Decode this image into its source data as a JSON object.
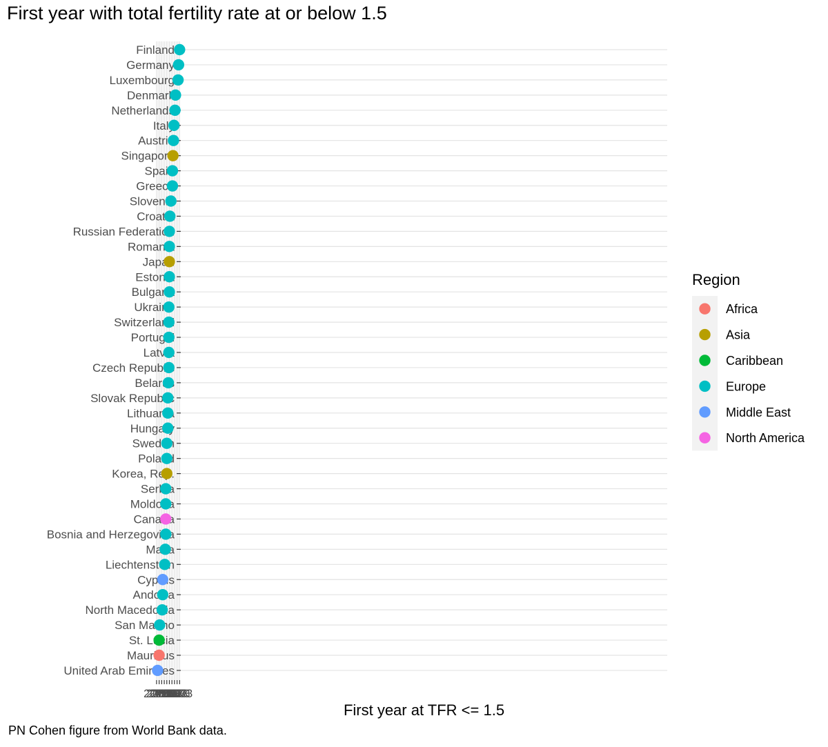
{
  "chart_data": {
    "type": "scatter",
    "title": "First year with total fertility rate at or below 1.5",
    "xlabel": "First year at TFR <= 1.5",
    "ylabel": "",
    "caption": "PN Cohen figure from World Bank data.",
    "xlim": [
      1970.7,
      1020.3
    ],
    "x_ticks": [
      1973,
      1978,
      1983,
      1988,
      1993,
      1998,
      2003,
      2008,
      2013,
      2018
    ],
    "grid": true,
    "legend": {
      "title": "Region",
      "position": "right"
    },
    "series": [
      {
        "name": "Africa",
        "color": "#F8766D"
      },
      {
        "name": "Asia",
        "color": "#B79F00"
      },
      {
        "name": "Caribbean",
        "color": "#00BA38"
      },
      {
        "name": "Europe",
        "color": "#00BFC4"
      },
      {
        "name": "Middle East",
        "color": "#619CFF"
      },
      {
        "name": "North America",
        "color": "#F564E3"
      }
    ],
    "points": [
      {
        "country": "Finland",
        "year": 1973,
        "region": "Europe"
      },
      {
        "country": "Germany",
        "year": 1975,
        "region": "Europe"
      },
      {
        "country": "Luxembourg",
        "year": 1976,
        "region": "Europe"
      },
      {
        "country": "Denmark",
        "year": 1981,
        "region": "Europe"
      },
      {
        "country": "Netherlands",
        "year": 1982,
        "region": "Europe"
      },
      {
        "country": "Italy",
        "year": 1984,
        "region": "Europe"
      },
      {
        "country": "Austria",
        "year": 1985,
        "region": "Europe"
      },
      {
        "country": "Singapore",
        "year": 1986,
        "region": "Asia"
      },
      {
        "country": "Spain",
        "year": 1987,
        "region": "Europe"
      },
      {
        "country": "Greece",
        "year": 1987,
        "region": "Europe"
      },
      {
        "country": "Slovenia",
        "year": 1990,
        "region": "Europe"
      },
      {
        "country": "Croatia",
        "year": 1992,
        "region": "Europe"
      },
      {
        "country": "Russian Federation",
        "year": 1993,
        "region": "Europe"
      },
      {
        "country": "Romania",
        "year": 1993,
        "region": "Europe"
      },
      {
        "country": "Japan",
        "year": 1993,
        "region": "Asia"
      },
      {
        "country": "Estonia",
        "year": 1993,
        "region": "Europe"
      },
      {
        "country": "Bulgaria",
        "year": 1993,
        "region": "Europe"
      },
      {
        "country": "Ukraine",
        "year": 1994,
        "region": "Europe"
      },
      {
        "country": "Switzerland",
        "year": 1994,
        "region": "Europe"
      },
      {
        "country": "Portugal",
        "year": 1994,
        "region": "Europe"
      },
      {
        "country": "Latvia",
        "year": 1994,
        "region": "Europe"
      },
      {
        "country": "Czech Republic",
        "year": 1994,
        "region": "Europe"
      },
      {
        "country": "Belarus",
        "year": 1995,
        "region": "Europe"
      },
      {
        "country": "Slovak Republic",
        "year": 1996,
        "region": "Europe"
      },
      {
        "country": "Lithuania",
        "year": 1996,
        "region": "Europe"
      },
      {
        "country": "Hungary",
        "year": 1996,
        "region": "Europe"
      },
      {
        "country": "Sweden",
        "year": 1998,
        "region": "Europe"
      },
      {
        "country": "Poland",
        "year": 1998,
        "region": "Europe"
      },
      {
        "country": "Korea, Rep.",
        "year": 1998,
        "region": "Asia"
      },
      {
        "country": "Serbia",
        "year": 2000,
        "region": "Europe"
      },
      {
        "country": "Moldova",
        "year": 2000,
        "region": "Europe"
      },
      {
        "country": "Canada",
        "year": 2000,
        "region": "North America"
      },
      {
        "country": "Bosnia and Herzegovina",
        "year": 2000,
        "region": "Europe"
      },
      {
        "country": "Malta",
        "year": 2001,
        "region": "Europe"
      },
      {
        "country": "Liechtenstein",
        "year": 2002,
        "region": "Europe"
      },
      {
        "country": "Cyprus",
        "year": 2006,
        "region": "Middle East"
      },
      {
        "country": "Andorra",
        "year": 2006,
        "region": "Europe"
      },
      {
        "country": "North Macedonia",
        "year": 2007,
        "region": "Europe"
      },
      {
        "country": "San Marino",
        "year": 2012,
        "region": "Europe"
      },
      {
        "country": "St. Lucia",
        "year": 2013,
        "region": "Caribbean"
      },
      {
        "country": "Mauritius",
        "year": 2013,
        "region": "Africa"
      },
      {
        "country": "United Arab Emirates",
        "year": 2016,
        "region": "Middle East"
      }
    ]
  }
}
